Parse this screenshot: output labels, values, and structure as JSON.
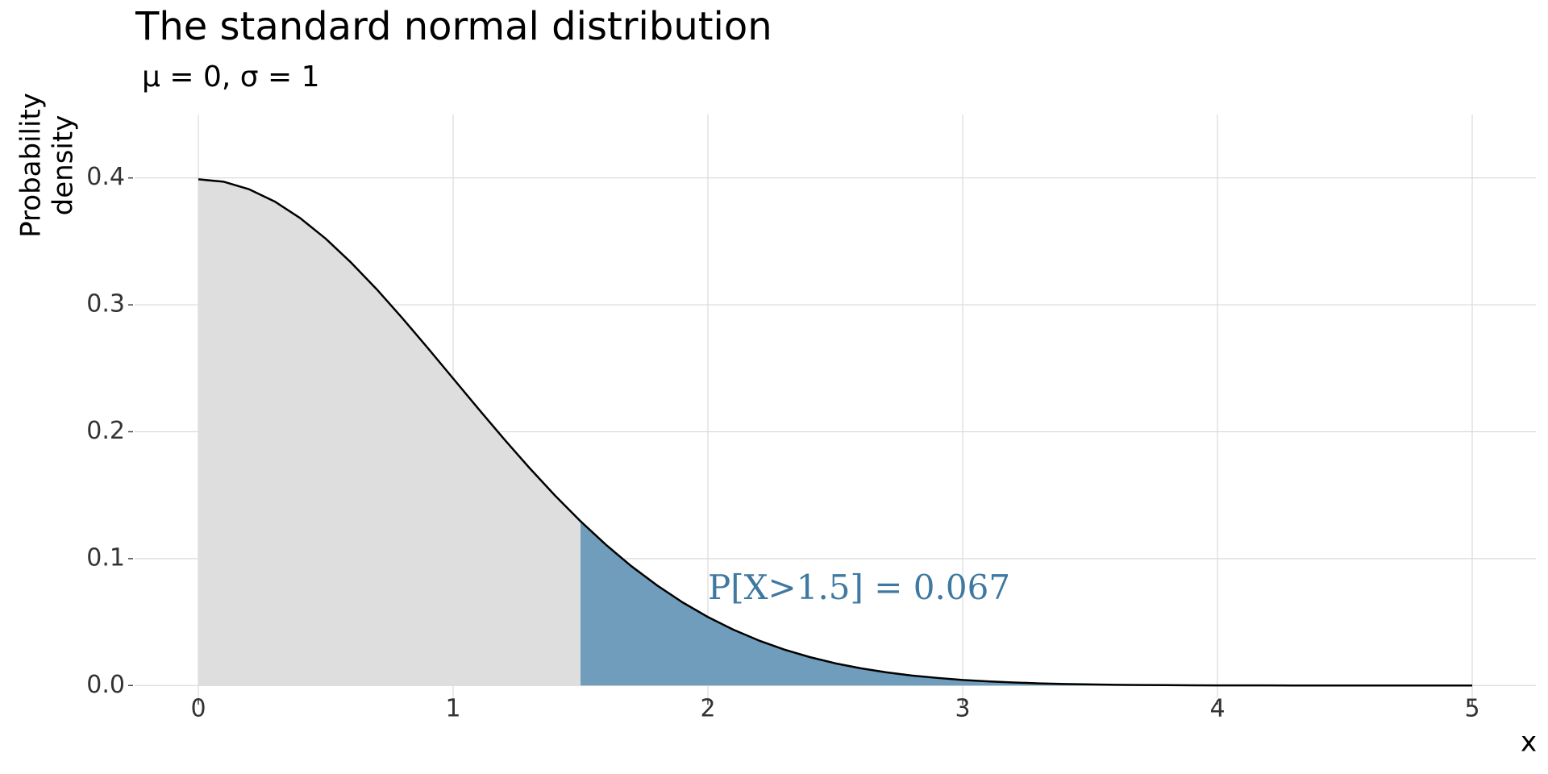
{
  "chart_data": {
    "type": "area",
    "title": "The standard normal distribution",
    "subtitle": "μ = 0,  σ = 1",
    "xlabel": "x",
    "ylabel": [
      "Probability",
      "density"
    ],
    "annotation": {
      "text": "P[X>1.5] = 0.067",
      "x": 2,
      "y": 0.075,
      "color": "#3f78a0"
    },
    "highlight_from": 1.5,
    "colors": {
      "line": "#000000",
      "fill": "#dedede",
      "highlight": "#6f9dbb"
    },
    "x": [
      0,
      0.1,
      0.2,
      0.3,
      0.4,
      0.5,
      0.6,
      0.7,
      0.8,
      0.9,
      1,
      1.1,
      1.2,
      1.3,
      1.4,
      1.5,
      1.6,
      1.7,
      1.8,
      1.9,
      2,
      2.1,
      2.2,
      2.3,
      2.4,
      2.5,
      2.6,
      2.7,
      2.8,
      2.9,
      3,
      3.1,
      3.2,
      3.3,
      3.4,
      3.5,
      3.6,
      3.7,
      3.8,
      3.9,
      4,
      4.1,
      4.2,
      4.3,
      4.4,
      4.5,
      4.6,
      4.7,
      4.8,
      4.9,
      5
    ],
    "values": [
      0.3989,
      0.397,
      0.391,
      0.3814,
      0.3683,
      0.3521,
      0.3332,
      0.3123,
      0.2897,
      0.2661,
      0.242,
      0.2179,
      0.1942,
      0.1714,
      0.1497,
      0.1295,
      0.1109,
      0.094,
      0.079,
      0.0656,
      0.054,
      0.044,
      0.0355,
      0.0283,
      0.0224,
      0.0175,
      0.0136,
      0.0104,
      0.0079,
      0.006,
      0.0044,
      0.0033,
      0.0024,
      0.0017,
      0.0012,
      0.0009,
      0.0006,
      0.0004,
      0.0003,
      0.0002,
      0.0001,
      0.0001,
      0.0001,
      0,
      0,
      0,
      0,
      0,
      0,
      0,
      0
    ],
    "xlim": [
      -0.25,
      5.25
    ],
    "xticks": [
      0,
      1,
      2,
      3,
      4,
      5
    ],
    "ylim": [
      -0.01,
      0.45
    ],
    "yticks": [
      {
        "value": 0,
        "label": "0.0"
      },
      0.1,
      0.2,
      0.3,
      0.4
    ],
    "grid": true
  }
}
